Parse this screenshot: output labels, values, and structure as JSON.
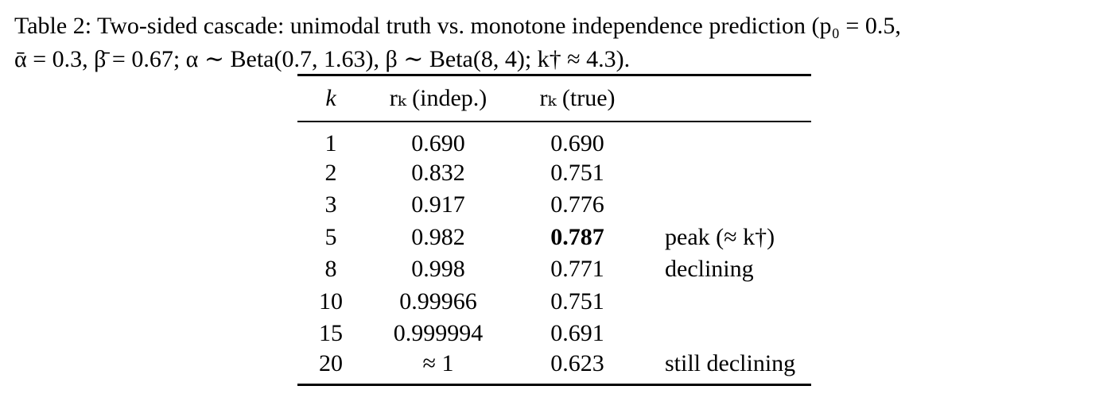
{
  "caption": {
    "line1": "Table 2: Two-sided cascade: unimodal truth vs. monotone independence prediction (p₀ = 0.5,",
    "line2": "ᾱ = 0.3, β̄ = 0.67; α ∼ Beta(0.7, 1.63), β ∼ Beta(8, 4); k† ≈ 4.3)."
  },
  "table": {
    "headers": {
      "k": "k",
      "indep": "rₖ (indep.)",
      "true": "rₖ (true)",
      "note": ""
    },
    "rows": [
      {
        "k": "1",
        "indep": "0.690",
        "true": "0.690",
        "note": "",
        "true_bold": false
      },
      {
        "k": "2",
        "indep": "0.832",
        "true": "0.751",
        "note": "",
        "true_bold": false
      },
      {
        "k": "3",
        "indep": "0.917",
        "true": "0.776",
        "note": "",
        "true_bold": false
      },
      {
        "k": "5",
        "indep": "0.982",
        "true": "0.787",
        "note": "peak (≈ k†)",
        "true_bold": true
      },
      {
        "k": "8",
        "indep": "0.998",
        "true": "0.771",
        "note": "declining",
        "true_bold": false
      },
      {
        "k": "10",
        "indep": "0.99966",
        "true": "0.751",
        "note": "",
        "true_bold": false
      },
      {
        "k": "15",
        "indep": "0.999994",
        "true": "0.691",
        "note": "",
        "true_bold": false
      },
      {
        "k": "20",
        "indep": "≈ 1",
        "true": "0.623",
        "note": "still declining",
        "true_bold": false
      }
    ]
  }
}
